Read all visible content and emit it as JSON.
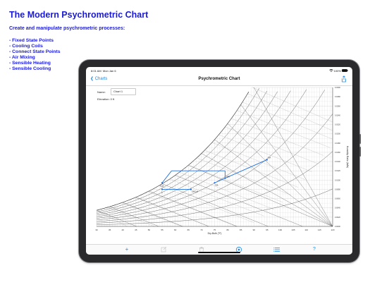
{
  "promo": {
    "headline": "The Modern Psychrometric Chart",
    "subhead": "Create and manipulate psychrometric processes:",
    "features": [
      "- Fixed State Points",
      "- Cooling Coils",
      "- Connect State Points",
      "- Air Mixing",
      "- Sensible Heating",
      "- Sensible Cooling"
    ]
  },
  "status": {
    "time": "8:01 AM",
    "date": "Mon Jan 6",
    "battery": "100%"
  },
  "nav": {
    "back": "Charts",
    "title": "Psychrometric Chart",
    "share_icon": "share-icon"
  },
  "form": {
    "name_label": "Name:",
    "name_value": "Chart 1",
    "elevation": "Elevation: 0 ft"
  },
  "chart": {
    "xlabel": "Dry-Bulb (°F)",
    "ylabel": "Humidity Ratio (lb/lb)",
    "x_ticks": [
      "30",
      "35",
      "40",
      "45",
      "50",
      "55",
      "60",
      "65",
      "70",
      "75",
      "80",
      "85",
      "90",
      "95",
      "100",
      "105",
      "110",
      "115",
      "120"
    ],
    "y_ticks": [
      "0.0000",
      "0.0020",
      "0.0040",
      "0.0060",
      "0.0080",
      "0.0100",
      "0.0120",
      "0.0140",
      "0.0160",
      "0.0180",
      "0.0200",
      "0.0220",
      "0.0240",
      "0.0260",
      "0.0280",
      "0.0300"
    ],
    "point_labels": [
      "OA",
      "RA",
      "MA",
      "Coil",
      "OffCoil",
      "1"
    ],
    "accent": "#1e6fe0"
  },
  "toolbar": {
    "add": "+",
    "edit": "edit-icon",
    "delete": "trash-icon",
    "compass": "compass-icon",
    "list": "list-icon",
    "help": "?"
  }
}
